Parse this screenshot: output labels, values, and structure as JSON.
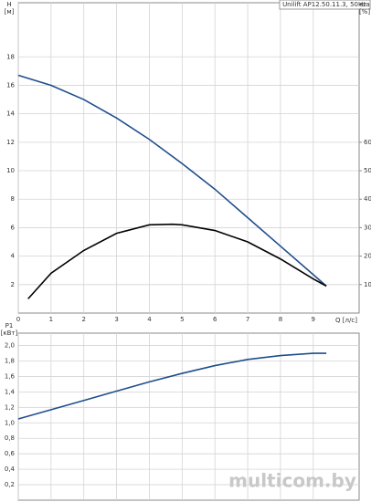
{
  "chart_data": [
    {
      "type": "line",
      "title": "Unilift AP12.50.11.3, 50Hz",
      "y_label": "H",
      "y_unit": "[м]",
      "y2_label": "eta",
      "y2_unit": "[%]",
      "x_label": "Q [л/с]",
      "xlim": [
        0,
        10.4
      ],
      "xticks": [
        0,
        1,
        2,
        3,
        4,
        5,
        6,
        7,
        8,
        9
      ],
      "ylim": [
        0,
        21.8
      ],
      "yticks": [
        2,
        4,
        6,
        8,
        10,
        12,
        14,
        16,
        18
      ],
      "y2lim": [
        0,
        109
      ],
      "y2ticks": [
        10,
        20,
        30,
        40,
        50,
        60
      ],
      "grid": true,
      "series": [
        {
          "color": "#1f4e8c",
          "x": [
            0,
            1,
            2,
            3,
            4,
            5,
            6,
            7,
            8,
            9,
            9.4
          ],
          "values": [
            16.7,
            16.0,
            15.0,
            13.7,
            12.2,
            10.5,
            8.7,
            6.7,
            4.7,
            2.7,
            1.9
          ]
        },
        {
          "color": "#000000",
          "axis": "y2",
          "x": [
            0.3,
            1,
            2,
            3,
            4,
            4.7,
            5,
            6,
            7,
            8,
            9,
            9.4
          ],
          "values": [
            5,
            14,
            22,
            28,
            31,
            31.2,
            31,
            29,
            25,
            19,
            12,
            9.5
          ]
        }
      ]
    },
    {
      "type": "line",
      "y_label": "P1",
      "y_unit": "[кВт]",
      "xlim": [
        0,
        10.4
      ],
      "ylim": [
        0,
        2.16
      ],
      "yticks": [
        {
          "value": 0.2,
          "label": "0,2"
        },
        {
          "value": 0.4,
          "label": "0,4"
        },
        {
          "value": 0.6,
          "label": "0,6"
        },
        {
          "value": 0.8,
          "label": "0,8"
        },
        {
          "value": 1.0,
          "label": "1,0"
        },
        {
          "value": 1.2,
          "label": "1,2"
        },
        {
          "value": 1.4,
          "label": "1,4"
        },
        {
          "value": 1.6,
          "label": "1,6"
        },
        {
          "value": 1.8,
          "label": "1,8"
        },
        {
          "value": 2.0,
          "label": "2,0"
        }
      ],
      "grid": true,
      "series": [
        {
          "color": "#1f4e8c",
          "x": [
            0,
            1,
            2,
            3,
            4,
            5,
            6,
            7,
            8,
            9,
            9.4
          ],
          "values": [
            1.05,
            1.17,
            1.29,
            1.41,
            1.53,
            1.64,
            1.74,
            1.82,
            1.87,
            1.9,
            1.9
          ]
        }
      ]
    }
  ],
  "watermark": "multicom.by"
}
